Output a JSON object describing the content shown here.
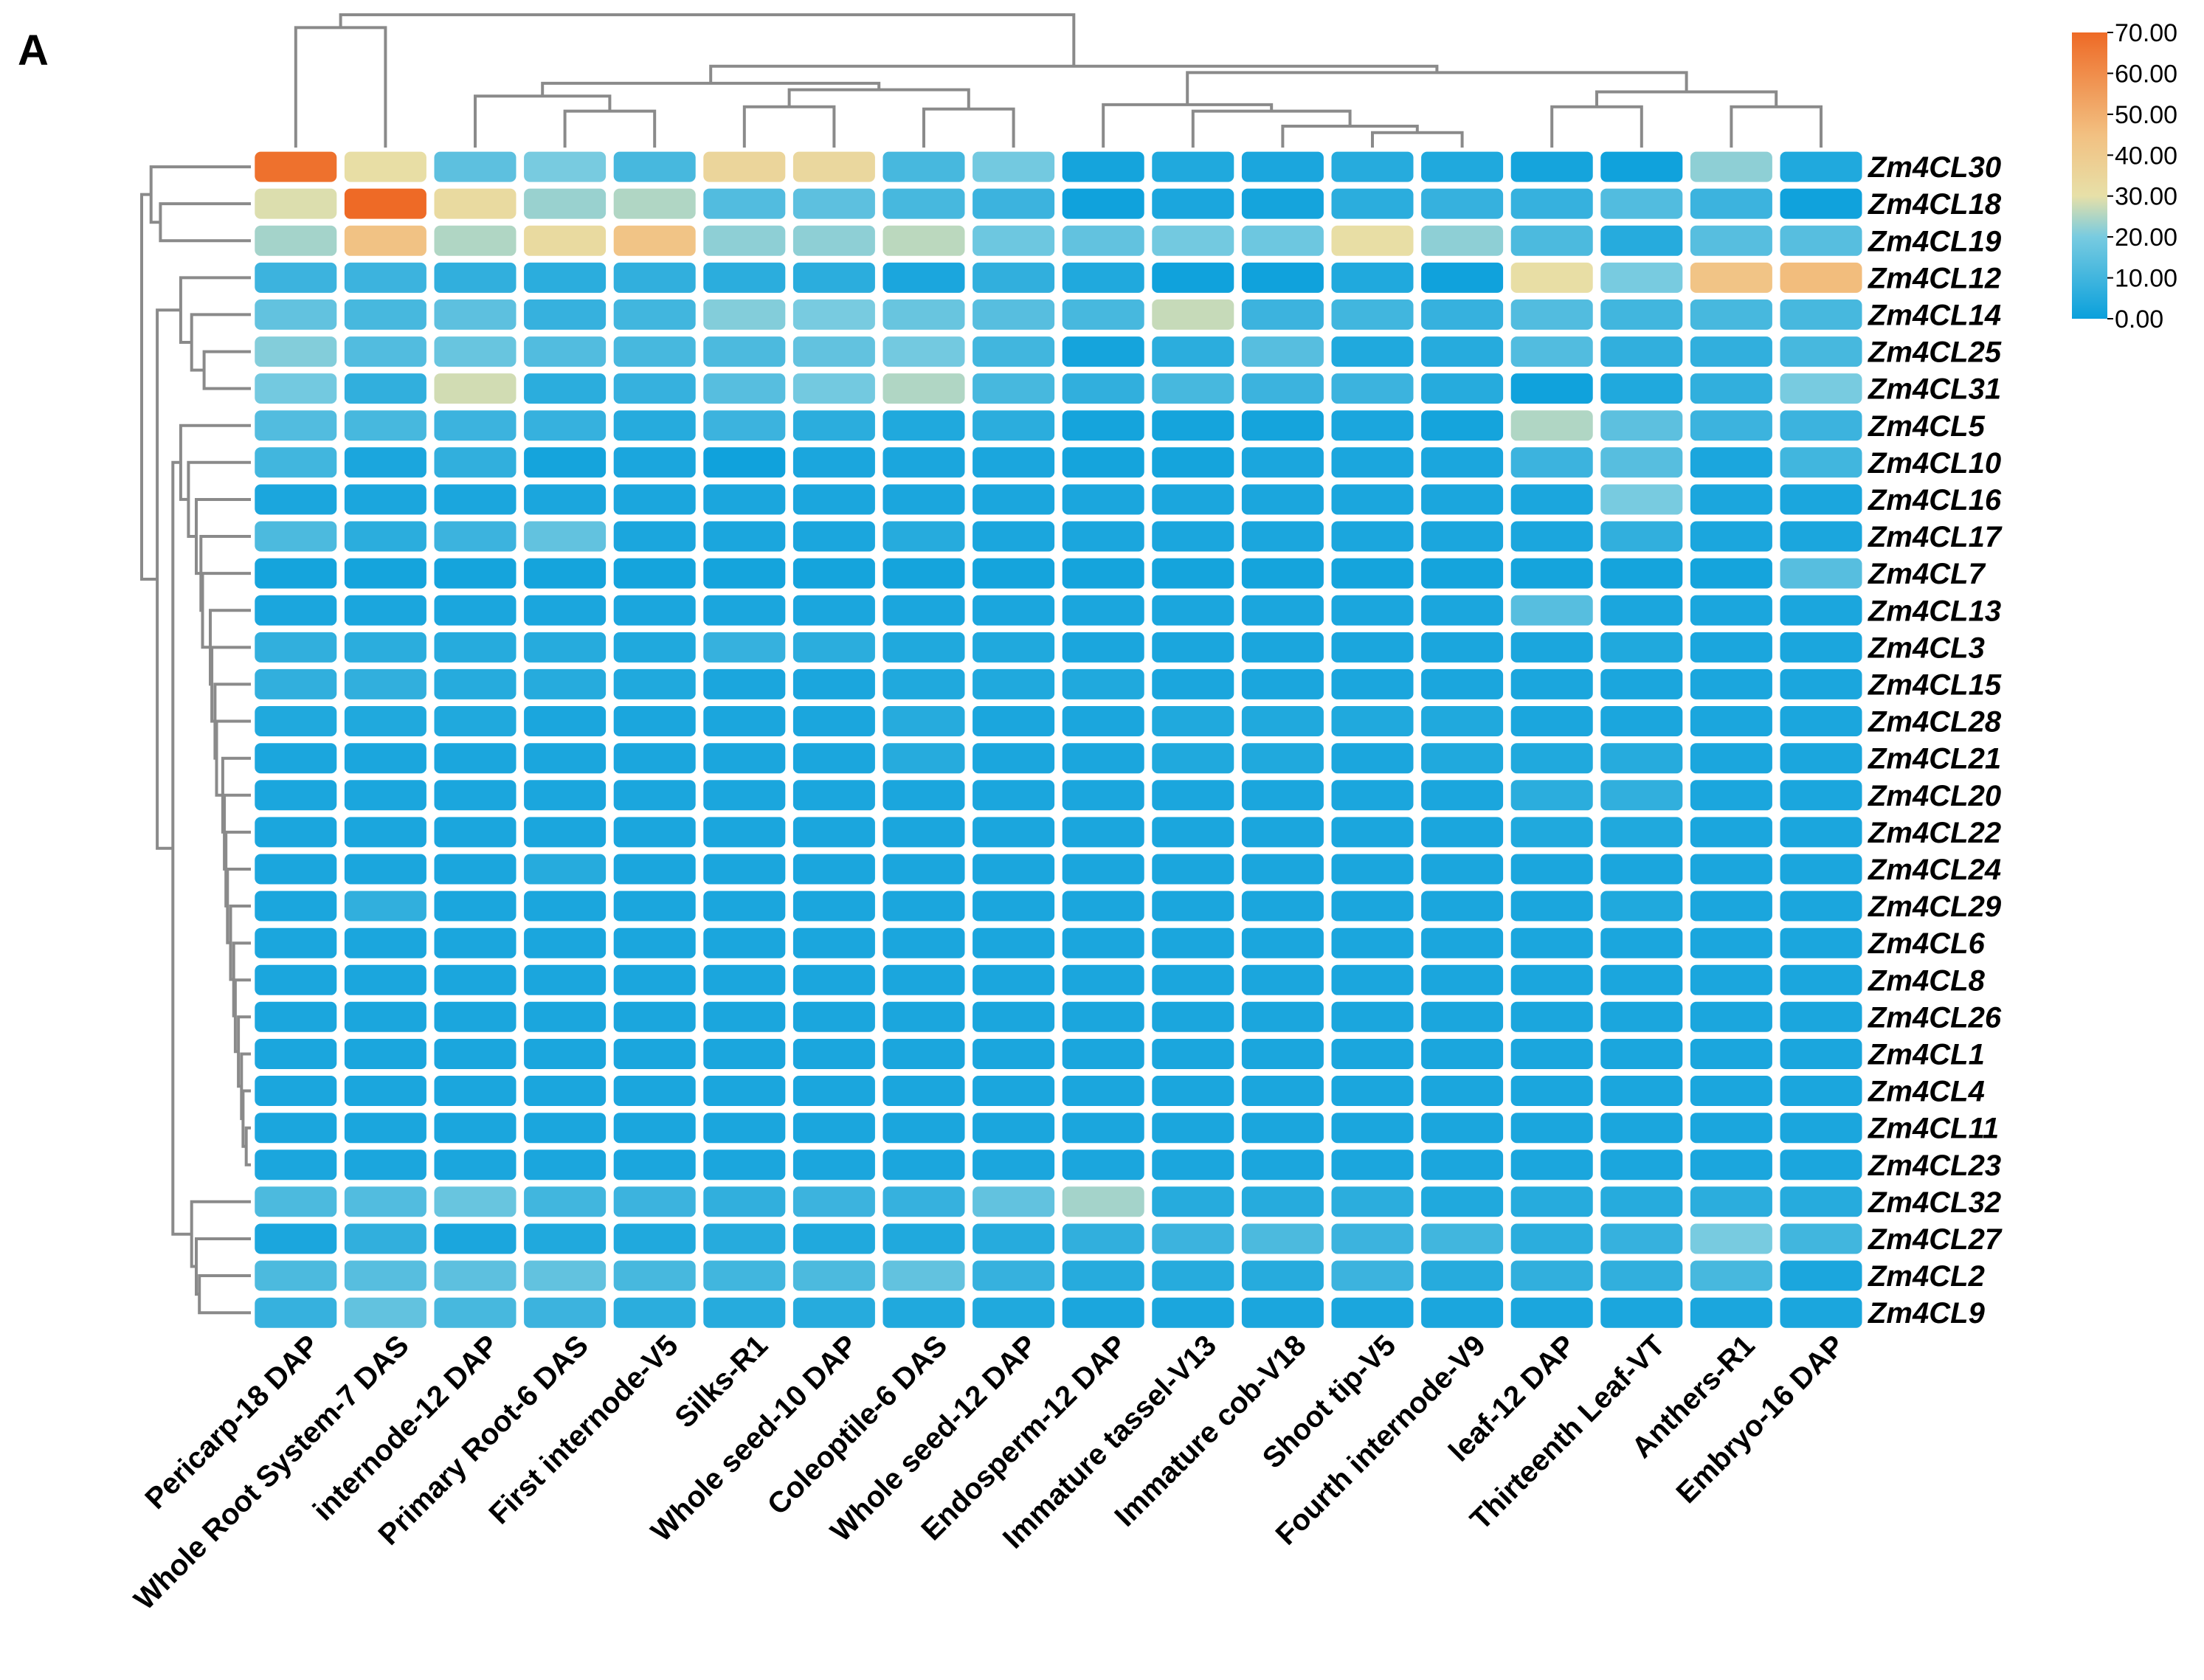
{
  "panel_label": "A",
  "chart_data": {
    "type": "heatmap",
    "title": "",
    "color_scale": {
      "min": 0,
      "max": 70,
      "stops": [
        {
          "value": 0,
          "color": "#0aa0dc"
        },
        {
          "value": 20,
          "color": "#78cbe0"
        },
        {
          "value": 30,
          "color": "#e7e0a8"
        },
        {
          "value": 45,
          "color": "#f2c081"
        },
        {
          "value": 70,
          "color": "#ee6a26"
        }
      ],
      "tick_labels": [
        "70.00",
        "60.00",
        "50.00",
        "40.00",
        "30.00",
        "20.00",
        "10.00",
        "0.00"
      ]
    },
    "columns": [
      "Pericarp-18 DAP",
      "Whole Root System-7 DAS",
      "internode-12 DAP",
      "Primary Root-6 DAS",
      "First internode-V5",
      "Silks-R1",
      "Whole seed-10 DAP",
      "Coleoptile-6 DAS",
      "Whole seed-12 DAP",
      "Endosperm-12 DAP",
      "Immature tassel-V13",
      "Immature cob-V18",
      "Shoot tip-V5",
      "Fourth internode-V9",
      "leaf-12 DAP",
      "Thirteenth Leaf-VT",
      "Anthers-R1",
      "Embryo-16 DAP"
    ],
    "rows": [
      "Zm4CL30",
      "Zm4CL18",
      "Zm4CL19",
      "Zm4CL12",
      "Zm4CL14",
      "Zm4CL25",
      "Zm4CL31",
      "Zm4CL5",
      "Zm4CL10",
      "Zm4CL16",
      "Zm4CL17",
      "Zm4CL7",
      "Zm4CL13",
      "Zm4CL3",
      "Zm4CL15",
      "Zm4CL28",
      "Zm4CL21",
      "Zm4CL20",
      "Zm4CL22",
      "Zm4CL24",
      "Zm4CL29",
      "Zm4CL6",
      "Zm4CL8",
      "Zm4CL26",
      "Zm4CL1",
      "Zm4CL4",
      "Zm4CL11",
      "Zm4CL23",
      "Zm4CL32",
      "Zm4CL27",
      "Zm4CL2",
      "Zm4CL9"
    ],
    "values": [
      [
        68,
        31,
        15,
        20,
        11,
        35,
        34,
        11,
        19,
        2,
        4,
        3,
        5,
        4,
        2,
        1,
        22,
        4
      ],
      [
        29,
        70,
        33,
        23,
        25,
        13,
        15,
        11,
        9,
        1,
        3,
        2,
        6,
        8,
        8,
        13,
        9,
        1
      ],
      [
        24,
        44,
        25,
        33,
        43,
        22,
        22,
        26,
        18,
        16,
        19,
        18,
        31,
        22,
        12,
        5,
        14,
        14
      ],
      [
        9,
        9,
        7,
        6,
        7,
        6,
        6,
        3,
        7,
        4,
        1,
        1,
        4,
        1,
        31,
        20,
        43,
        46
      ],
      [
        16,
        11,
        15,
        8,
        10,
        21,
        20,
        17,
        14,
        11,
        27,
        9,
        10,
        8,
        13,
        10,
        11,
        11
      ],
      [
        21,
        13,
        17,
        13,
        11,
        12,
        16,
        19,
        10,
        2,
        6,
        14,
        4,
        5,
        13,
        7,
        7,
        11
      ],
      [
        19,
        7,
        28,
        6,
        8,
        14,
        19,
        25,
        11,
        7,
        11,
        9,
        9,
        5,
        1,
        4,
        7,
        20
      ],
      [
        13,
        11,
        9,
        8,
        5,
        9,
        6,
        4,
        6,
        2,
        2,
        2,
        3,
        2,
        25,
        15,
        9,
        9
      ],
      [
        10,
        3,
        7,
        2,
        3,
        1,
        3,
        3,
        3,
        2,
        2,
        3,
        3,
        3,
        9,
        14,
        3,
        10
      ],
      [
        3,
        3,
        3,
        3,
        3,
        3,
        3,
        3,
        3,
        3,
        3,
        3,
        3,
        3,
        3,
        20,
        3,
        3
      ],
      [
        12,
        6,
        9,
        16,
        3,
        3,
        3,
        5,
        3,
        3,
        3,
        3,
        3,
        3,
        3,
        7,
        3,
        3
      ],
      [
        2,
        2,
        2,
        2,
        2,
        2,
        2,
        2,
        2,
        2,
        2,
        2,
        2,
        2,
        2,
        2,
        2,
        14
      ],
      [
        3,
        3,
        3,
        3,
        3,
        3,
        3,
        3,
        3,
        3,
        3,
        3,
        3,
        3,
        14,
        3,
        3,
        3
      ],
      [
        7,
        6,
        5,
        5,
        4,
        8,
        6,
        4,
        4,
        3,
        3,
        3,
        3,
        3,
        3,
        4,
        3,
        3
      ],
      [
        7,
        7,
        5,
        5,
        4,
        3,
        3,
        4,
        4,
        4,
        3,
        3,
        3,
        3,
        3,
        3,
        3,
        3
      ],
      [
        4,
        4,
        4,
        3,
        3,
        3,
        3,
        5,
        3,
        3,
        4,
        4,
        4,
        4,
        3,
        3,
        3,
        3
      ],
      [
        3,
        3,
        3,
        3,
        3,
        3,
        3,
        5,
        3,
        3,
        4,
        4,
        3,
        4,
        4,
        5,
        3,
        3
      ],
      [
        3,
        3,
        3,
        3,
        3,
        3,
        3,
        3,
        3,
        3,
        3,
        3,
        3,
        3,
        6,
        7,
        3,
        3
      ],
      [
        3,
        3,
        3,
        3,
        3,
        3,
        3,
        3,
        3,
        3,
        3,
        3,
        3,
        3,
        4,
        4,
        3,
        3
      ],
      [
        3,
        3,
        3,
        5,
        3,
        3,
        3,
        3,
        3,
        3,
        3,
        3,
        3,
        3,
        3,
        3,
        3,
        3
      ],
      [
        3,
        7,
        3,
        3,
        3,
        3,
        3,
        3,
        3,
        3,
        3,
        3,
        3,
        3,
        3,
        4,
        3,
        3
      ],
      [
        3,
        3,
        3,
        3,
        3,
        3,
        3,
        3,
        3,
        3,
        3,
        3,
        3,
        3,
        3,
        3,
        3,
        3
      ],
      [
        3,
        3,
        3,
        3,
        3,
        3,
        3,
        3,
        3,
        3,
        3,
        3,
        3,
        3,
        3,
        3,
        3,
        3
      ],
      [
        3,
        3,
        3,
        3,
        3,
        3,
        3,
        3,
        3,
        3,
        3,
        3,
        3,
        3,
        3,
        3,
        3,
        3
      ],
      [
        3,
        3,
        3,
        3,
        3,
        3,
        3,
        3,
        3,
        3,
        3,
        3,
        3,
        3,
        3,
        3,
        3,
        3
      ],
      [
        3,
        3,
        3,
        3,
        3,
        3,
        3,
        3,
        3,
        3,
        3,
        3,
        3,
        3,
        3,
        3,
        3,
        3
      ],
      [
        3,
        3,
        3,
        3,
        3,
        3,
        3,
        3,
        3,
        3,
        3,
        3,
        3,
        3,
        3,
        3,
        3,
        3
      ],
      [
        3,
        3,
        3,
        3,
        3,
        3,
        3,
        3,
        3,
        3,
        3,
        3,
        3,
        3,
        3,
        3,
        3,
        3
      ],
      [
        12,
        13,
        17,
        10,
        9,
        7,
        9,
        8,
        16,
        24,
        5,
        5,
        6,
        4,
        5,
        5,
        6,
        5
      ],
      [
        3,
        7,
        3,
        4,
        4,
        5,
        4,
        4,
        5,
        7,
        9,
        12,
        9,
        10,
        6,
        8,
        20,
        10
      ],
      [
        12,
        14,
        15,
        16,
        11,
        10,
        12,
        16,
        8,
        5,
        5,
        5,
        9,
        5,
        7,
        7,
        11,
        3
      ],
      [
        8,
        16,
        11,
        9,
        6,
        5,
        5,
        4,
        4,
        3,
        3,
        3,
        3,
        3,
        3,
        3,
        3,
        3
      ]
    ],
    "column_dendrogram": {
      "leaves": [
        "Pericarp-18 DAP",
        "Whole Root System-7 DAS",
        "internode-12 DAP",
        "Primary Root-6 DAS",
        "First internode-V5",
        "Silks-R1",
        "Whole seed-10 DAP",
        "Coleoptile-6 DAS",
        "Whole seed-12 DAP",
        "Endosperm-12 DAP",
        "Immature tassel-V13",
        "Immature cob-V18",
        "Shoot tip-V5",
        "Fourth internode-V9",
        "leaf-12 DAP",
        "Thirteenth Leaf-VT",
        "Anthers-R1",
        "Embryo-16 DAP"
      ],
      "merges": [
        [
          0,
          1,
          5.6
        ],
        [
          3,
          4,
          1.7
        ],
        [
          2,
          19,
          2.4
        ],
        [
          5,
          6,
          1.9
        ],
        [
          7,
          8,
          1.8
        ],
        [
          21,
          22,
          2.7
        ],
        [
          20,
          23,
          3.0
        ],
        [
          12,
          13,
          0.7
        ],
        [
          11,
          25,
          1.0
        ],
        [
          10,
          26,
          1.7
        ],
        [
          9,
          27,
          2.0
        ],
        [
          14,
          15,
          1.9
        ],
        [
          16,
          17,
          1.9
        ],
        [
          29,
          30,
          2.6
        ],
        [
          28,
          31,
          3.5
        ],
        [
          24,
          32,
          3.8
        ],
        [
          18,
          33,
          6.2
        ]
      ]
    },
    "row_dendrogram": {
      "leaves": [
        "Zm4CL30",
        "Zm4CL18",
        "Zm4CL19",
        "Zm4CL12",
        "Zm4CL14",
        "Zm4CL25",
        "Zm4CL31",
        "Zm4CL5",
        "Zm4CL10",
        "Zm4CL16",
        "Zm4CL17",
        "Zm4CL7",
        "Zm4CL13",
        "Zm4CL3",
        "Zm4CL15",
        "Zm4CL28",
        "Zm4CL21",
        "Zm4CL20",
        "Zm4CL22",
        "Zm4CL24",
        "Zm4CL29",
        "Zm4CL6",
        "Zm4CL8",
        "Zm4CL26",
        "Zm4CL1",
        "Zm4CL4",
        "Zm4CL11",
        "Zm4CL23",
        "Zm4CL32",
        "Zm4CL27",
        "Zm4CL2",
        "Zm4CL9"
      ],
      "merges": [
        [
          1,
          2,
          5.8
        ],
        [
          0,
          32,
          6.4
        ],
        [
          5,
          6,
          3.0
        ],
        [
          4,
          34,
          3.8
        ],
        [
          3,
          35,
          4.5
        ],
        [
          26,
          27,
          0.3
        ],
        [
          25,
          37,
          0.5
        ],
        [
          24,
          38,
          0.6
        ],
        [
          23,
          39,
          0.8
        ],
        [
          22,
          40,
          1.0
        ],
        [
          21,
          41,
          1.1
        ],
        [
          20,
          42,
          1.3
        ],
        [
          19,
          43,
          1.5
        ],
        [
          18,
          44,
          1.6
        ],
        [
          17,
          45,
          1.7
        ],
        [
          16,
          46,
          1.8
        ],
        [
          15,
          47,
          2.2
        ],
        [
          14,
          48,
          2.3
        ],
        [
          13,
          49,
          2.5
        ],
        [
          12,
          50,
          2.6
        ],
        [
          11,
          51,
          3.1
        ],
        [
          10,
          52,
          3.2
        ],
        [
          9,
          53,
          3.5
        ],
        [
          8,
          54,
          4.0
        ],
        [
          7,
          55,
          4.5
        ],
        [
          30,
          31,
          3.3
        ],
        [
          29,
          57,
          3.5
        ],
        [
          28,
          58,
          3.8
        ],
        [
          56,
          59,
          5.0
        ],
        [
          36,
          60,
          6.0
        ],
        [
          33,
          61,
          7.0
        ]
      ]
    }
  }
}
